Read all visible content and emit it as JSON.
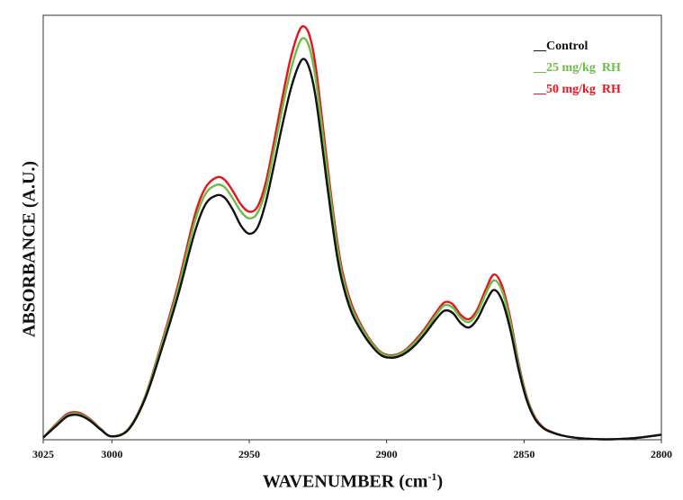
{
  "chart_data": {
    "type": "line",
    "xlabel": "WAVENUMBER",
    "xlabel_unit_base": "cm",
    "xlabel_unit_exp": "-1",
    "ylabel": "ABSORBANCE (A.U.)",
    "xlim": [
      3025,
      2800
    ],
    "ylim": [
      0,
      1.02
    ],
    "x_reversed": true,
    "x_ticks": [
      "3025",
      "3000",
      "2950",
      "2900",
      "2850",
      "2800"
    ],
    "legend_position": "top-right",
    "series": [
      {
        "name": "__Control",
        "color": "#111111",
        "x": [
          3025,
          3020,
          3016,
          3012,
          3008,
          3004,
          3000,
          2994,
          2988,
          2982,
          2976,
          2970,
          2966,
          2962,
          2959,
          2956,
          2953,
          2950,
          2947,
          2944,
          2941,
          2938,
          2935,
          2932,
          2930,
          2928,
          2926,
          2924,
          2922,
          2920,
          2918,
          2916,
          2913,
          2910,
          2906,
          2902,
          2898,
          2894,
          2890,
          2886,
          2882,
          2879,
          2876,
          2873,
          2870,
          2867,
          2864,
          2861,
          2858,
          2855,
          2852,
          2849,
          2846,
          2843,
          2840,
          2836,
          2830,
          2820,
          2810,
          2800
        ],
        "y": [
          0.005,
          0.035,
          0.057,
          0.059,
          0.046,
          0.024,
          0.008,
          0.024,
          0.097,
          0.215,
          0.345,
          0.495,
          0.565,
          0.587,
          0.582,
          0.553,
          0.514,
          0.495,
          0.51,
          0.57,
          0.66,
          0.755,
          0.84,
          0.9,
          0.915,
          0.89,
          0.83,
          0.735,
          0.63,
          0.53,
          0.44,
          0.375,
          0.31,
          0.27,
          0.23,
          0.203,
          0.197,
          0.205,
          0.225,
          0.255,
          0.29,
          0.31,
          0.305,
          0.28,
          0.27,
          0.29,
          0.33,
          0.36,
          0.335,
          0.265,
          0.17,
          0.095,
          0.05,
          0.028,
          0.018,
          0.01,
          0.004,
          0.001,
          0.004,
          0.012
        ]
      },
      {
        "name": "__25 mg/kg  RH",
        "color": "#6abd45",
        "x": [
          3025,
          3020,
          3016,
          3012,
          3008,
          3004,
          3000,
          2994,
          2988,
          2982,
          2976,
          2970,
          2966,
          2962,
          2959,
          2956,
          2953,
          2950,
          2947,
          2944,
          2941,
          2938,
          2935,
          2932,
          2930,
          2928,
          2926,
          2924,
          2922,
          2920,
          2918,
          2916,
          2913,
          2910,
          2906,
          2902,
          2898,
          2894,
          2890,
          2886,
          2882,
          2879,
          2876,
          2873,
          2870,
          2867,
          2864,
          2861,
          2858,
          2855,
          2852,
          2849,
          2846,
          2843,
          2840,
          2836,
          2830,
          2820,
          2810,
          2800
        ],
        "y": [
          0.005,
          0.038,
          0.06,
          0.062,
          0.048,
          0.025,
          0.008,
          0.025,
          0.1,
          0.225,
          0.36,
          0.52,
          0.59,
          0.612,
          0.607,
          0.58,
          0.548,
          0.532,
          0.545,
          0.6,
          0.695,
          0.795,
          0.885,
          0.95,
          0.965,
          0.94,
          0.875,
          0.775,
          0.665,
          0.56,
          0.465,
          0.392,
          0.322,
          0.28,
          0.237,
          0.208,
          0.201,
          0.21,
          0.232,
          0.263,
          0.3,
          0.323,
          0.318,
          0.293,
          0.283,
          0.305,
          0.35,
          0.383,
          0.358,
          0.283,
          0.18,
          0.1,
          0.052,
          0.029,
          0.018,
          0.01,
          0.004,
          0.001,
          0.004,
          0.012
        ]
      },
      {
        "name": "__50 mg/kg  RH",
        "color": "#e8141c",
        "x": [
          3025,
          3020,
          3016,
          3012,
          3008,
          3004,
          3000,
          2994,
          2988,
          2982,
          2976,
          2970,
          2966,
          2962,
          2959,
          2956,
          2953,
          2950,
          2947,
          2944,
          2941,
          2938,
          2935,
          2932,
          2930,
          2928,
          2926,
          2924,
          2922,
          2920,
          2918,
          2916,
          2913,
          2910,
          2906,
          2902,
          2898,
          2894,
          2890,
          2886,
          2882,
          2879,
          2876,
          2873,
          2870,
          2867,
          2864,
          2861,
          2858,
          2855,
          2852,
          2849,
          2846,
          2843,
          2840,
          2836,
          2830,
          2820,
          2810,
          2800
        ],
        "y": [
          0.005,
          0.04,
          0.063,
          0.065,
          0.05,
          0.026,
          0.008,
          0.026,
          0.102,
          0.23,
          0.37,
          0.535,
          0.605,
          0.63,
          0.625,
          0.598,
          0.565,
          0.548,
          0.56,
          0.618,
          0.715,
          0.82,
          0.915,
          0.98,
          0.993,
          0.97,
          0.905,
          0.8,
          0.685,
          0.575,
          0.478,
          0.402,
          0.33,
          0.285,
          0.24,
          0.21,
          0.203,
          0.212,
          0.236,
          0.268,
          0.306,
          0.33,
          0.326,
          0.3,
          0.29,
          0.313,
          0.36,
          0.397,
          0.37,
          0.292,
          0.185,
          0.103,
          0.054,
          0.03,
          0.019,
          0.01,
          0.004,
          0.001,
          0.004,
          0.012
        ]
      }
    ]
  }
}
